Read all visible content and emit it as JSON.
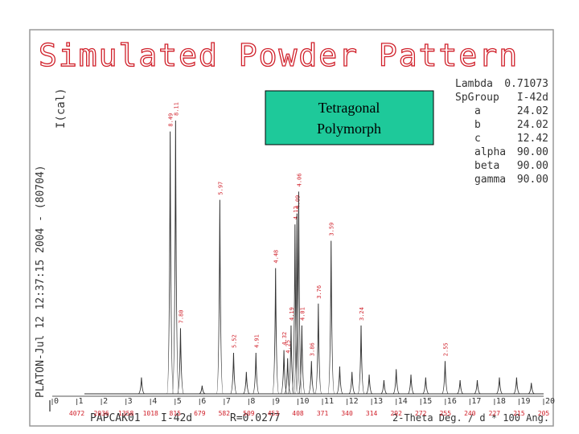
{
  "chart_data": {
    "type": "peaks",
    "title": "Simulated Powder Pattern",
    "side_label": "PLATON-Jul 12 12:37:15 2004 - (80704)",
    "y_label": "I(cal)",
    "box_text": [
      "Tetragonal",
      "Polymorph"
    ],
    "parameters": [
      {
        "label": "Lambda",
        "value": "0.71073"
      },
      {
        "label": "SpGroup",
        "value": "I-42d"
      },
      {
        "label": "a",
        "value": "24.02"
      },
      {
        "label": "b",
        "value": "24.02"
      },
      {
        "label": "c",
        "value": "12.42"
      },
      {
        "label": "alpha",
        "value": "90.00"
      },
      {
        "label": "beta",
        "value": "90.00"
      },
      {
        "label": "gamma",
        "value": "90.00"
      }
    ],
    "footer": [
      "PAPCAK01",
      "I-42d",
      "R=0.0277",
      "2-Theta Deg. / d * 100 Ang."
    ],
    "color": "#333333",
    "label_color": "#d0202a",
    "x": [
      3.63,
      4.8,
      5.02,
      5.22,
      6.1,
      6.82,
      7.38,
      7.9,
      8.29,
      9.09,
      9.43,
      9.58,
      9.72,
      9.88,
      9.96,
      10.03,
      10.16,
      10.55,
      10.83,
      11.35,
      11.7,
      12.2,
      12.57,
      12.9,
      13.5,
      14.0,
      14.6,
      15.2,
      15.99,
      16.6,
      17.3,
      18.2,
      18.9,
      19.5
    ],
    "values": [
      6,
      96,
      100,
      24,
      3,
      71,
      15,
      8,
      15,
      46,
      16,
      13,
      25,
      62,
      66,
      74,
      25,
      12,
      33,
      56,
      10,
      8,
      25,
      7,
      5,
      9,
      7,
      6,
      12,
      5,
      5,
      6,
      6,
      4
    ],
    "d_labels": [
      null,
      "8.49",
      "8.11",
      "7.80",
      null,
      "5.97",
      "5.52",
      null,
      "4.91",
      "4.48",
      "4.32",
      "4.25",
      "4.19",
      "4.12",
      "4.09",
      "4.06",
      "4.01",
      "3.86",
      "3.76",
      "3.59",
      null,
      null,
      "3.24",
      null,
      null,
      null,
      null,
      null,
      "2.55",
      null,
      null,
      null,
      null,
      null
    ],
    "xlim": [
      0,
      20
    ],
    "ylim": [
      0,
      100
    ],
    "xticks": [
      0,
      1,
      2,
      3,
      4,
      5,
      6,
      7,
      8,
      9,
      10,
      11,
      12,
      13,
      14,
      15,
      16,
      17,
      18,
      19,
      20
    ],
    "xtick_d_labels": [
      "4072",
      "2036",
      "1358",
      "1018",
      "815",
      "679",
      "582",
      "509",
      "453",
      "408",
      "371",
      "340",
      "314",
      "292",
      "272",
      "255",
      "240",
      "227",
      "215",
      "205"
    ]
  }
}
